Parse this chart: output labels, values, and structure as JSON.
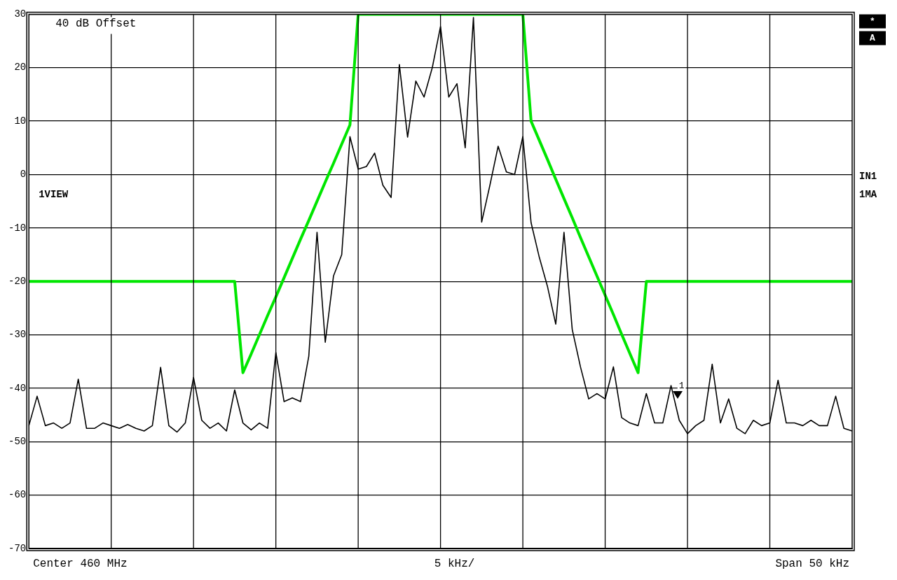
{
  "chart_data": {
    "type": "line",
    "ylim": [
      -70,
      30
    ],
    "categories": [
      null,
      null,
      null,
      null,
      null,
      null,
      null,
      null,
      null,
      null,
      null,
      null,
      null,
      null,
      null,
      null,
      null,
      null,
      null,
      null,
      null,
      null,
      null,
      null,
      null,
      null,
      null,
      null,
      null,
      null,
      null,
      null,
      null,
      null,
      null,
      null,
      null,
      null,
      null,
      null,
      null,
      null,
      null,
      null,
      null,
      null,
      null,
      null,
      null,
      null,
      null,
      null,
      null,
      null,
      null,
      null,
      null,
      null,
      null,
      null,
      null,
      null,
      null,
      null,
      null,
      null,
      null,
      null,
      null,
      null,
      null,
      null,
      null,
      null,
      null,
      null,
      null,
      null,
      null,
      null,
      null,
      null,
      null,
      null,
      null,
      null,
      null,
      null,
      null,
      null,
      null,
      null,
      null,
      null,
      null,
      null,
      null,
      null,
      null,
      null,
      null
    ],
    "yticks": [
      30,
      20,
      10,
      0,
      -10,
      -20,
      -30,
      -40,
      -50,
      -60,
      -70
    ],
    "grid": true,
    "legend": false,
    "tick_labels": "y",
    "marker": "none",
    "line_style": "solid",
    "annotations": [
      "40 dB Offset",
      "1VIEW",
      "IN1",
      "1MA",
      "*",
      "A",
      "Center 460 MHz",
      "5 kHz/",
      "Span 50 kHz",
      "1"
    ],
    "series": [
      {
        "type": "line",
        "color": "#000000",
        "values": [
          -47,
          -41.5,
          -47,
          -46.5,
          -47.5,
          -46.5,
          -38.3,
          -47.5,
          -47.5,
          -46.5,
          -47,
          -47.5,
          -46.8,
          -47.5,
          -48,
          -47,
          -36.1,
          -47,
          -48.2,
          -46.5,
          -38,
          -46,
          -47.5,
          -46.5,
          -48,
          -40.3,
          -46.5,
          -47.8,
          -46.5,
          -47.5,
          -33.3,
          -42.5,
          -41.8,
          -42.5,
          -34,
          -10.8,
          -31.4,
          -19,
          -15,
          7.1,
          1,
          1.5,
          4,
          -2,
          -4.3,
          20.6,
          7,
          17.5,
          14.5,
          20,
          27.7,
          14.5,
          17,
          5,
          29.4,
          -8.9,
          -2,
          5.3,
          0.5,
          0,
          7.1,
          -9,
          -15.5,
          -21,
          -28,
          -10.8,
          -29,
          -36,
          -42,
          -41,
          -42,
          -36,
          -45.5,
          -46.5,
          -47,
          -41,
          -46.5,
          -46.5,
          -39.5,
          -46,
          -48.5,
          -47,
          -46,
          -35.5,
          -46.5,
          -42,
          -47.5,
          -48.5,
          -46,
          -47,
          -46.5,
          -38.5,
          -46.5,
          -46.5,
          -47,
          -46,
          -47,
          -47,
          -41.5,
          -47.5,
          -48
        ]
      },
      {
        "type": "line",
        "color": "#00e600",
        "values": [
          -20,
          -20,
          -20,
          -20,
          -20,
          -20,
          -20,
          -20,
          -20,
          -20,
          -20,
          -20,
          -20,
          -20,
          -20,
          -20,
          -20,
          -20,
          -20,
          -20,
          -20,
          -20,
          -20,
          -20,
          -20,
          -20,
          -37.1,
          -33.6,
          -30,
          -26.4,
          -22.9,
          -19.3,
          -15.7,
          -12.1,
          -8.6,
          -5,
          -1.4,
          2.1,
          5.7,
          9.3,
          30,
          30,
          30,
          30,
          30,
          30,
          30,
          30,
          30,
          30,
          30,
          30,
          30,
          30,
          30,
          30,
          30,
          30,
          30,
          30,
          30,
          10,
          6.4,
          2.8,
          -0.9,
          -4.5,
          -8.1,
          -11.8,
          -15.4,
          -19,
          -22.6,
          -26.2,
          -29.9,
          -33.5,
          -37.1,
          -20,
          -20,
          -20,
          -20,
          -20,
          -20,
          -20,
          -20,
          -20,
          -20,
          -20,
          -20,
          -20,
          -20,
          -20,
          -20,
          -20,
          -20,
          -20,
          -20,
          -20,
          -20,
          -20,
          -20,
          -20,
          -20
        ]
      }
    ]
  }
}
